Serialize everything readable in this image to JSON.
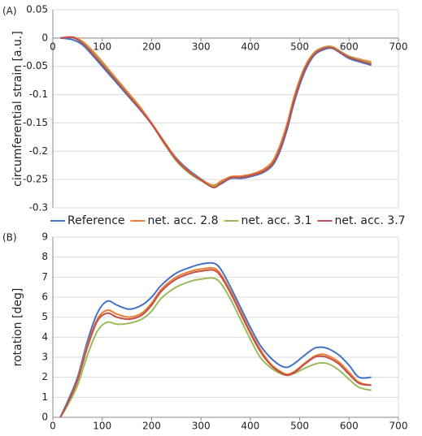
{
  "chart_data": [
    {
      "type": "line",
      "title": "(A)",
      "y_label": "circumferential strain [a.u.]",
      "x": [
        15,
        40,
        60,
        80,
        100,
        125,
        150,
        175,
        200,
        225,
        250,
        275,
        300,
        325,
        340,
        360,
        380,
        400,
        425,
        445,
        460,
        475,
        490,
        510,
        530,
        550,
        565,
        580,
        600,
        625,
        645
      ],
      "series": [
        {
          "name": "Reference",
          "color": "#4472c4",
          "values": [
            0,
            -0.003,
            -0.012,
            -0.03,
            -0.05,
            -0.075,
            -0.1,
            -0.125,
            -0.152,
            -0.183,
            -0.212,
            -0.233,
            -0.249,
            -0.262,
            -0.258,
            -0.248,
            -0.248,
            -0.245,
            -0.238,
            -0.225,
            -0.2,
            -0.16,
            -0.11,
            -0.06,
            -0.03,
            -0.02,
            -0.018,
            -0.025,
            -0.036,
            -0.043,
            -0.048
          ]
        },
        {
          "name": "net. acc. 2.8",
          "color": "#ed7d31",
          "values": [
            0,
            0.002,
            -0.006,
            -0.022,
            -0.042,
            -0.068,
            -0.094,
            -0.12,
            -0.15,
            -0.182,
            -0.213,
            -0.235,
            -0.25,
            -0.26,
            -0.253,
            -0.245,
            -0.244,
            -0.241,
            -0.233,
            -0.218,
            -0.19,
            -0.15,
            -0.1,
            -0.052,
            -0.025,
            -0.016,
            -0.015,
            -0.022,
            -0.032,
            -0.038,
            -0.042
          ]
        },
        {
          "name": "net. acc. 3.1",
          "color": "#9bbb59",
          "values": [
            0,
            0.001,
            -0.008,
            -0.025,
            -0.045,
            -0.07,
            -0.097,
            -0.123,
            -0.152,
            -0.186,
            -0.217,
            -0.238,
            -0.252,
            -0.262,
            -0.256,
            -0.247,
            -0.246,
            -0.243,
            -0.236,
            -0.222,
            -0.195,
            -0.155,
            -0.105,
            -0.055,
            -0.027,
            -0.017,
            -0.016,
            -0.023,
            -0.033,
            -0.039,
            -0.044
          ]
        },
        {
          "name": "net. acc. 3.7",
          "color": "#c0504d",
          "values": [
            0,
            0.001,
            -0.009,
            -0.027,
            -0.047,
            -0.072,
            -0.098,
            -0.124,
            -0.152,
            -0.184,
            -0.215,
            -0.236,
            -0.251,
            -0.264,
            -0.257,
            -0.247,
            -0.246,
            -0.243,
            -0.236,
            -0.222,
            -0.196,
            -0.156,
            -0.106,
            -0.056,
            -0.028,
            -0.018,
            -0.017,
            -0.024,
            -0.034,
            -0.041,
            -0.046
          ]
        }
      ],
      "xlim": [
        0,
        700
      ],
      "xticks": [
        0,
        100,
        200,
        300,
        400,
        500,
        600,
        700
      ],
      "ylim": [
        -0.3,
        0.05
      ],
      "yticks": [
        0.05,
        0,
        -0.05,
        -0.1,
        -0.15,
        -0.2,
        -0.25,
        -0.3
      ],
      "grid": true
    },
    {
      "type": "line",
      "title": "(B)",
      "y_label": "rotation [deg]",
      "x": [
        15,
        30,
        50,
        70,
        90,
        110,
        130,
        155,
        180,
        200,
        220,
        250,
        280,
        300,
        325,
        340,
        360,
        380,
        400,
        420,
        440,
        460,
        475,
        490,
        510,
        530,
        545,
        560,
        580,
        600,
        620,
        645
      ],
      "series": [
        {
          "color": "#4472c4",
          "values": [
            0,
            0.8,
            2,
            3.8,
            5.2,
            5.8,
            5.6,
            5.4,
            5.6,
            6,
            6.6,
            7.2,
            7.5,
            7.65,
            7.7,
            7.4,
            6.5,
            5.5,
            4.5,
            3.6,
            3,
            2.6,
            2.5,
            2.7,
            3.1,
            3.45,
            3.5,
            3.4,
            3.1,
            2.6,
            2,
            2
          ]
        },
        {
          "color": "#ed7d31",
          "values": [
            0,
            0.7,
            1.9,
            3.6,
            4.9,
            5.35,
            5.15,
            5.0,
            5.2,
            5.7,
            6.4,
            7.0,
            7.3,
            7.4,
            7.45,
            7.15,
            6.3,
            5.3,
            4.3,
            3.4,
            2.7,
            2.3,
            2.15,
            2.3,
            2.7,
            3.05,
            3.15,
            3.05,
            2.75,
            2.25,
            1.75,
            1.6
          ]
        },
        {
          "color": "#9bbb59",
          "values": [
            0,
            0.6,
            1.6,
            3.1,
            4.3,
            4.75,
            4.65,
            4.7,
            4.9,
            5.3,
            5.95,
            6.5,
            6.8,
            6.9,
            6.95,
            6.7,
            5.9,
            4.9,
            3.9,
            3.0,
            2.5,
            2.2,
            2.1,
            2.2,
            2.45,
            2.65,
            2.72,
            2.65,
            2.35,
            1.9,
            1.5,
            1.35
          ]
        },
        {
          "color": "#c0504d",
          "values": [
            0,
            0.7,
            1.85,
            3.5,
            4.8,
            5.2,
            5.0,
            4.9,
            5.1,
            5.6,
            6.3,
            6.9,
            7.2,
            7.3,
            7.35,
            7.05,
            6.2,
            5.2,
            4.2,
            3.3,
            2.65,
            2.25,
            2.1,
            2.25,
            2.65,
            3.0,
            3.05,
            2.95,
            2.65,
            2.15,
            1.7,
            1.6
          ]
        }
      ],
      "xlim": [
        0,
        700
      ],
      "xticks": [
        0,
        100,
        200,
        300,
        400,
        500,
        600,
        700
      ],
      "ylim": [
        0,
        9
      ],
      "yticks": [
        0,
        1,
        2,
        3,
        4,
        5,
        6,
        7,
        8,
        9
      ],
      "grid": true
    }
  ]
}
